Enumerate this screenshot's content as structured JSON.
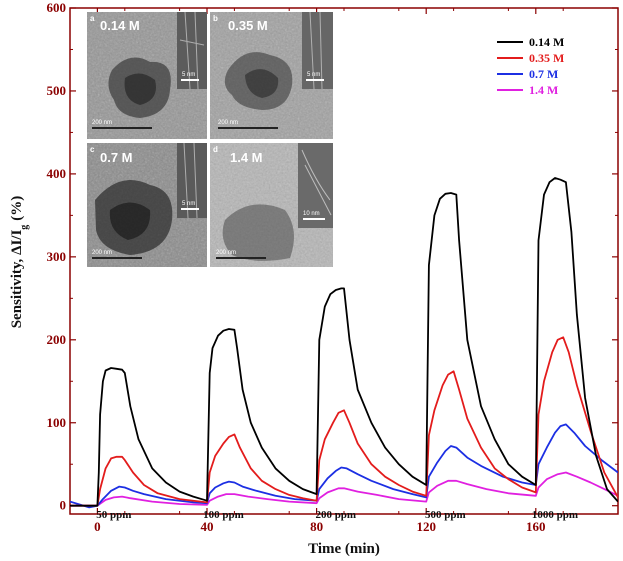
{
  "chart_data": {
    "type": "line",
    "title": "",
    "xlabel": "Time (min)",
    "ylabel": "Sensitivity, ΔI/I",
    "ylabel_subscript": "g",
    "ylabel_unit": "(%)",
    "xlim": [
      -10,
      190
    ],
    "ylim": [
      -10,
      600
    ],
    "xticks": [
      0,
      40,
      80,
      120,
      160
    ],
    "yticks": [
      0,
      100,
      200,
      300,
      400,
      500,
      600
    ],
    "annotations": [
      {
        "text": "50 ppm",
        "x": 6,
        "y": -15
      },
      {
        "text": "100 ppm",
        "x": 46,
        "y": -15
      },
      {
        "text": "200 ppm",
        "x": 87,
        "y": -15
      },
      {
        "text": "500 ppm",
        "x": 127,
        "y": -15
      },
      {
        "text": "1000 ppm",
        "x": 167,
        "y": -15
      }
    ],
    "series": [
      {
        "name": "0.14 M",
        "color": "#000000",
        "points": [
          [
            -10,
            0
          ],
          [
            0,
            0
          ],
          [
            0.5,
            40
          ],
          [
            1,
            110
          ],
          [
            2,
            150
          ],
          [
            3,
            163
          ],
          [
            5,
            166
          ],
          [
            7,
            165
          ],
          [
            9,
            164
          ],
          [
            10,
            160
          ],
          [
            12,
            120
          ],
          [
            15,
            80
          ],
          [
            20,
            45
          ],
          [
            25,
            28
          ],
          [
            30,
            17
          ],
          [
            35,
            11
          ],
          [
            40,
            6
          ],
          [
            41,
            160
          ],
          [
            42,
            190
          ],
          [
            44,
            205
          ],
          [
            46,
            211
          ],
          [
            48,
            213
          ],
          [
            50,
            212
          ],
          [
            51,
            190
          ],
          [
            53,
            140
          ],
          [
            56,
            100
          ],
          [
            60,
            70
          ],
          [
            65,
            45
          ],
          [
            70,
            30
          ],
          [
            75,
            20
          ],
          [
            80,
            14
          ],
          [
            81,
            200
          ],
          [
            83,
            240
          ],
          [
            85,
            255
          ],
          [
            87,
            260
          ],
          [
            89,
            262
          ],
          [
            90,
            262
          ],
          [
            92,
            200
          ],
          [
            95,
            140
          ],
          [
            100,
            100
          ],
          [
            105,
            70
          ],
          [
            110,
            50
          ],
          [
            115,
            35
          ],
          [
            120,
            25
          ],
          [
            121,
            290
          ],
          [
            123,
            350
          ],
          [
            125,
            370
          ],
          [
            127,
            376
          ],
          [
            129,
            377
          ],
          [
            131,
            375
          ],
          [
            132,
            320
          ],
          [
            135,
            200
          ],
          [
            140,
            120
          ],
          [
            145,
            80
          ],
          [
            150,
            50
          ],
          [
            155,
            35
          ],
          [
            160,
            25
          ],
          [
            161,
            320
          ],
          [
            163,
            375
          ],
          [
            165,
            390
          ],
          [
            167,
            395
          ],
          [
            169,
            393
          ],
          [
            171,
            390
          ],
          [
            173,
            330
          ],
          [
            175,
            230
          ],
          [
            178,
            130
          ],
          [
            182,
            60
          ],
          [
            186,
            20
          ],
          [
            190,
            5
          ]
        ]
      },
      {
        "name": "0.35 M",
        "color": "#e31c1c",
        "points": [
          [
            -10,
            0
          ],
          [
            0,
            0
          ],
          [
            1,
            20
          ],
          [
            3,
            45
          ],
          [
            5,
            57
          ],
          [
            7,
            59
          ],
          [
            9,
            59
          ],
          [
            10,
            55
          ],
          [
            13,
            40
          ],
          [
            17,
            25
          ],
          [
            22,
            15
          ],
          [
            30,
            8
          ],
          [
            40,
            4
          ],
          [
            41,
            40
          ],
          [
            43,
            60
          ],
          [
            46,
            75
          ],
          [
            48,
            83
          ],
          [
            50,
            86
          ],
          [
            52,
            70
          ],
          [
            56,
            45
          ],
          [
            60,
            30
          ],
          [
            65,
            20
          ],
          [
            70,
            13
          ],
          [
            75,
            9
          ],
          [
            80,
            6
          ],
          [
            81,
            55
          ],
          [
            83,
            80
          ],
          [
            86,
            100
          ],
          [
            88,
            112
          ],
          [
            90,
            115
          ],
          [
            92,
            100
          ],
          [
            95,
            75
          ],
          [
            100,
            50
          ],
          [
            105,
            35
          ],
          [
            110,
            25
          ],
          [
            115,
            17
          ],
          [
            120,
            12
          ],
          [
            121,
            85
          ],
          [
            123,
            115
          ],
          [
            126,
            145
          ],
          [
            128,
            158
          ],
          [
            130,
            162
          ],
          [
            132,
            140
          ],
          [
            135,
            105
          ],
          [
            140,
            70
          ],
          [
            145,
            45
          ],
          [
            150,
            32
          ],
          [
            155,
            22
          ],
          [
            160,
            16
          ],
          [
            161,
            110
          ],
          [
            163,
            150
          ],
          [
            166,
            185
          ],
          [
            168,
            200
          ],
          [
            170,
            203
          ],
          [
            172,
            185
          ],
          [
            175,
            145
          ],
          [
            180,
            90
          ],
          [
            185,
            40
          ],
          [
            190,
            10
          ]
        ]
      },
      {
        "name": "0.7 M",
        "color": "#1c2fe3",
        "points": [
          [
            -10,
            5
          ],
          [
            -3,
            -2
          ],
          [
            0,
            0
          ],
          [
            2,
            8
          ],
          [
            5,
            18
          ],
          [
            8,
            23
          ],
          [
            10,
            22
          ],
          [
            13,
            18
          ],
          [
            17,
            14
          ],
          [
            25,
            8
          ],
          [
            35,
            4
          ],
          [
            40,
            3
          ],
          [
            41,
            15
          ],
          [
            43,
            22
          ],
          [
            46,
            27
          ],
          [
            48,
            29
          ],
          [
            50,
            28
          ],
          [
            53,
            23
          ],
          [
            58,
            18
          ],
          [
            65,
            12
          ],
          [
            72,
            8
          ],
          [
            80,
            6
          ],
          [
            81,
            20
          ],
          [
            84,
            33
          ],
          [
            87,
            42
          ],
          [
            89,
            46
          ],
          [
            91,
            45
          ],
          [
            95,
            38
          ],
          [
            100,
            30
          ],
          [
            108,
            20
          ],
          [
            115,
            14
          ],
          [
            120,
            10
          ],
          [
            121,
            35
          ],
          [
            124,
            52
          ],
          [
            127,
            66
          ],
          [
            129,
            72
          ],
          [
            131,
            70
          ],
          [
            135,
            58
          ],
          [
            140,
            48
          ],
          [
            148,
            35
          ],
          [
            155,
            28
          ],
          [
            160,
            25
          ],
          [
            161,
            50
          ],
          [
            164,
            70
          ],
          [
            167,
            88
          ],
          [
            169,
            96
          ],
          [
            171,
            98
          ],
          [
            174,
            88
          ],
          [
            178,
            72
          ],
          [
            184,
            55
          ],
          [
            190,
            40
          ]
        ]
      },
      {
        "name": "1.4 M",
        "color": "#e020e0",
        "points": [
          [
            -10,
            0
          ],
          [
            0,
            0
          ],
          [
            3,
            7
          ],
          [
            6,
            10
          ],
          [
            9,
            11
          ],
          [
            12,
            9
          ],
          [
            20,
            5
          ],
          [
            30,
            2
          ],
          [
            40,
            1
          ],
          [
            41,
            6
          ],
          [
            44,
            11
          ],
          [
            47,
            14
          ],
          [
            50,
            14
          ],
          [
            55,
            11
          ],
          [
            62,
            8
          ],
          [
            70,
            5
          ],
          [
            80,
            3
          ],
          [
            81,
            9
          ],
          [
            84,
            16
          ],
          [
            88,
            21
          ],
          [
            90,
            21
          ],
          [
            95,
            17
          ],
          [
            102,
            13
          ],
          [
            110,
            8
          ],
          [
            120,
            5
          ],
          [
            121,
            16
          ],
          [
            124,
            24
          ],
          [
            128,
            30
          ],
          [
            131,
            30
          ],
          [
            135,
            26
          ],
          [
            142,
            20
          ],
          [
            150,
            15
          ],
          [
            160,
            12
          ],
          [
            161,
            22
          ],
          [
            164,
            32
          ],
          [
            168,
            38
          ],
          [
            171,
            40
          ],
          [
            175,
            35
          ],
          [
            180,
            28
          ],
          [
            185,
            20
          ],
          [
            190,
            12
          ]
        ]
      }
    ],
    "legend": {
      "position": "top-right",
      "entries": [
        "0.14 M",
        "0.35 M",
        "0.7 M",
        "1.4 M"
      ]
    },
    "insets": [
      {
        "letter": "a",
        "label": "0.14 M",
        "scale_small": "5 nm",
        "scale_large": "200 nm"
      },
      {
        "letter": "b",
        "label": "0.35 M",
        "scale_small": "5 nm",
        "scale_large": "200 nm"
      },
      {
        "letter": "c",
        "label": "0.7 M",
        "scale_small": "5 nm",
        "scale_large": "200 nm"
      },
      {
        "letter": "d",
        "label": "1.4 M",
        "scale_small": "10 nm",
        "scale_large": "200 nm"
      }
    ]
  },
  "colors": {
    "axis": "#8b0000",
    "background": "#ffffff",
    "inset_bg": "#8d8d8d"
  }
}
